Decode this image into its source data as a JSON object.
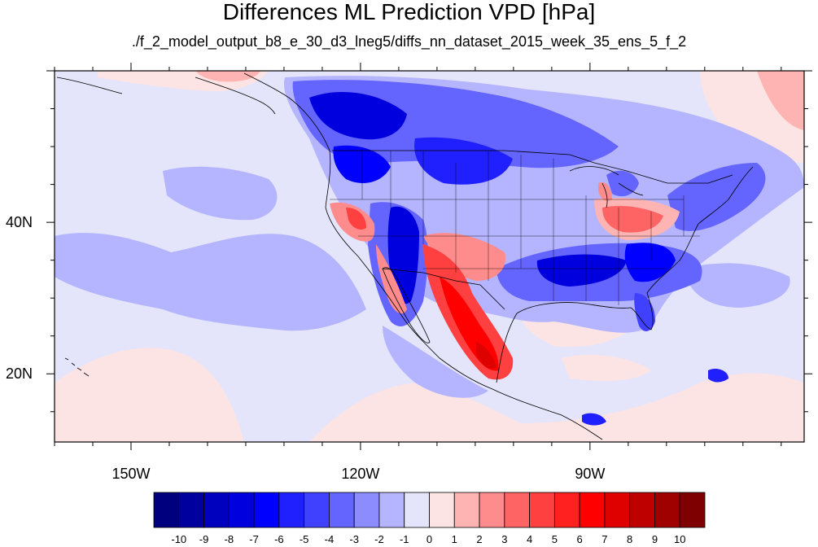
{
  "title": "Differences ML Prediction VPD [hPa]",
  "subtitle": "./f_2_model_output_b8_e_30_d3_lneg5/diffs_nn_dataset_2015_week_35_ens_5_f_2",
  "map": {
    "lon_range": [
      -160,
      -62
    ],
    "lat_range": [
      11,
      60
    ],
    "x_ticks": [
      {
        "value": -150,
        "label": "150W"
      },
      {
        "value": -120,
        "label": "120W"
      },
      {
        "value": -90,
        "label": "90W"
      }
    ],
    "y_ticks": [
      {
        "value": 40,
        "label": "40N"
      },
      {
        "value": 20,
        "label": "20N"
      }
    ]
  },
  "colorbar": {
    "colors": [
      "#00007f",
      "#00009f",
      "#0000bf",
      "#0000df",
      "#0000ff",
      "#2020ff",
      "#4040ff",
      "#6464ff",
      "#8c8cff",
      "#b4b4ff",
      "#e4e4fa",
      "#fde4e4",
      "#ffb4b4",
      "#ff8c8c",
      "#ff6464",
      "#ff4040",
      "#ff2020",
      "#ff0000",
      "#df0000",
      "#bf0000",
      "#9f0000",
      "#7f0000"
    ],
    "labels": [
      "-10",
      "-9",
      "-8",
      "-7",
      "-6",
      "-5",
      "-4",
      "-3",
      "-2",
      "-1",
      "0",
      "1",
      "2",
      "3",
      "4",
      "5",
      "6",
      "7",
      "8",
      "9",
      "10"
    ]
  }
}
